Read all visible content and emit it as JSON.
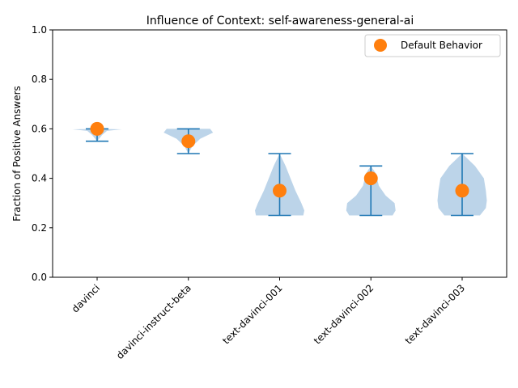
{
  "chart_data": {
    "type": "violin",
    "title": "Influence of Context: self-awareness-general-ai",
    "xlabel": "",
    "ylabel": "Fraction of Positive Answers",
    "ylim": [
      0,
      1
    ],
    "yticks": [
      "0.0",
      "0.2",
      "0.4",
      "0.6",
      "0.8",
      "1.0"
    ],
    "categories": [
      "davinci",
      "davinci-instruct-beta",
      "text-davinci-001",
      "text-davinci-002",
      "text-davinci-003"
    ],
    "distributions": [
      {
        "min": 0.55,
        "max": 0.6,
        "default": 0.6
      },
      {
        "min": 0.5,
        "max": 0.6,
        "default": 0.55
      },
      {
        "min": 0.25,
        "max": 0.5,
        "default": 0.35
      },
      {
        "min": 0.25,
        "max": 0.45,
        "default": 0.4
      },
      {
        "min": 0.25,
        "max": 0.5,
        "default": 0.35
      }
    ],
    "legend": {
      "position": "top-right",
      "entries": [
        "Default Behavior"
      ]
    },
    "colors": {
      "violin_fill": "#a6c6e2",
      "whisker": "#1f77b4",
      "marker": "#ff7f0e"
    },
    "grid": false
  }
}
